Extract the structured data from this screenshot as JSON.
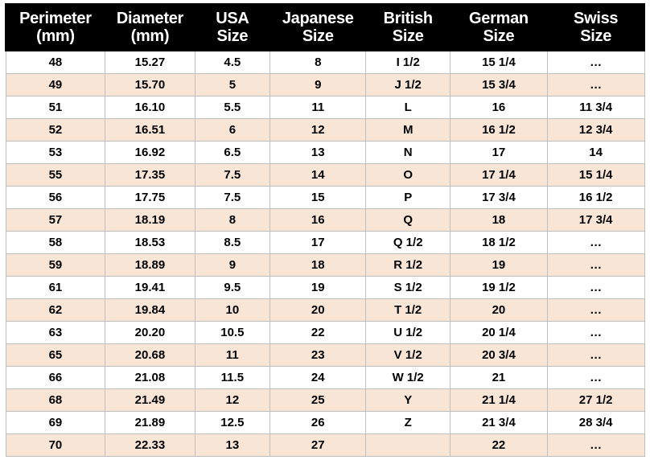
{
  "table": {
    "type": "table",
    "background_color": "#ffffff",
    "header_background": "#000000",
    "header_text_color": "#ffffff",
    "header_fontsize": 20,
    "cell_fontsize": 15,
    "cell_fontweight": "bold",
    "row_colors": {
      "even": "#ffffff",
      "odd": "#f9e5d6"
    },
    "border_color": "#bfbfbf",
    "column_widths_pct": [
      15.6,
      14.0,
      11.8,
      15.0,
      13.2,
      15.2,
      15.2
    ],
    "columns": [
      {
        "line1": "Perimeter",
        "line2": "(mm)"
      },
      {
        "line1": "Diameter",
        "line2": "(mm)"
      },
      {
        "line1": "USA",
        "line2": "Size"
      },
      {
        "line1": "Japanese",
        "line2": "Size"
      },
      {
        "line1": "British",
        "line2": "Size"
      },
      {
        "line1": "German",
        "line2": "Size"
      },
      {
        "line1": "Swiss",
        "line2": "Size"
      }
    ],
    "rows": [
      [
        "48",
        "15.27",
        "4.5",
        "8",
        "I 1/2",
        "15 1/4",
        "…"
      ],
      [
        "49",
        "15.70",
        "5",
        "9",
        "J 1/2",
        "15 3/4",
        "…"
      ],
      [
        "51",
        "16.10",
        "5.5",
        "11",
        "L",
        "16",
        "11 3/4"
      ],
      [
        "52",
        "16.51",
        "6",
        "12",
        "M",
        "16 1/2",
        "12 3/4"
      ],
      [
        "53",
        "16.92",
        "6.5",
        "13",
        "N",
        "17",
        "14"
      ],
      [
        "55",
        "17.35",
        "7.5",
        "14",
        "O",
        "17 1/4",
        "15 1/4"
      ],
      [
        "56",
        "17.75",
        "7.5",
        "15",
        "P",
        "17 3/4",
        "16 1/2"
      ],
      [
        "57",
        "18.19",
        "8",
        "16",
        "Q",
        "18",
        "17 3/4"
      ],
      [
        "58",
        "18.53",
        "8.5",
        "17",
        "Q 1/2",
        "18 1/2",
        "…"
      ],
      [
        "59",
        "18.89",
        "9",
        "18",
        "R 1/2",
        "19",
        "…"
      ],
      [
        "61",
        "19.41",
        "9.5",
        "19",
        "S 1/2",
        "19 1/2",
        "…"
      ],
      [
        "62",
        "19.84",
        "10",
        "20",
        "T 1/2",
        "20",
        "…"
      ],
      [
        "63",
        "20.20",
        "10.5",
        "22",
        "U 1/2",
        "20 1/4",
        "…"
      ],
      [
        "65",
        "20.68",
        "11",
        "23",
        "V 1/2",
        "20 3/4",
        "…"
      ],
      [
        "66",
        "21.08",
        "11.5",
        "24",
        "W 1/2",
        "21",
        "…"
      ],
      [
        "68",
        "21.49",
        "12",
        "25",
        "Y",
        "21 1/4",
        "27 1/2"
      ],
      [
        "69",
        "21.89",
        "12.5",
        "26",
        "Z",
        "21 3/4",
        "28 3/4"
      ],
      [
        "70",
        "22.33",
        "13",
        "27",
        "",
        "22",
        "…"
      ]
    ]
  }
}
